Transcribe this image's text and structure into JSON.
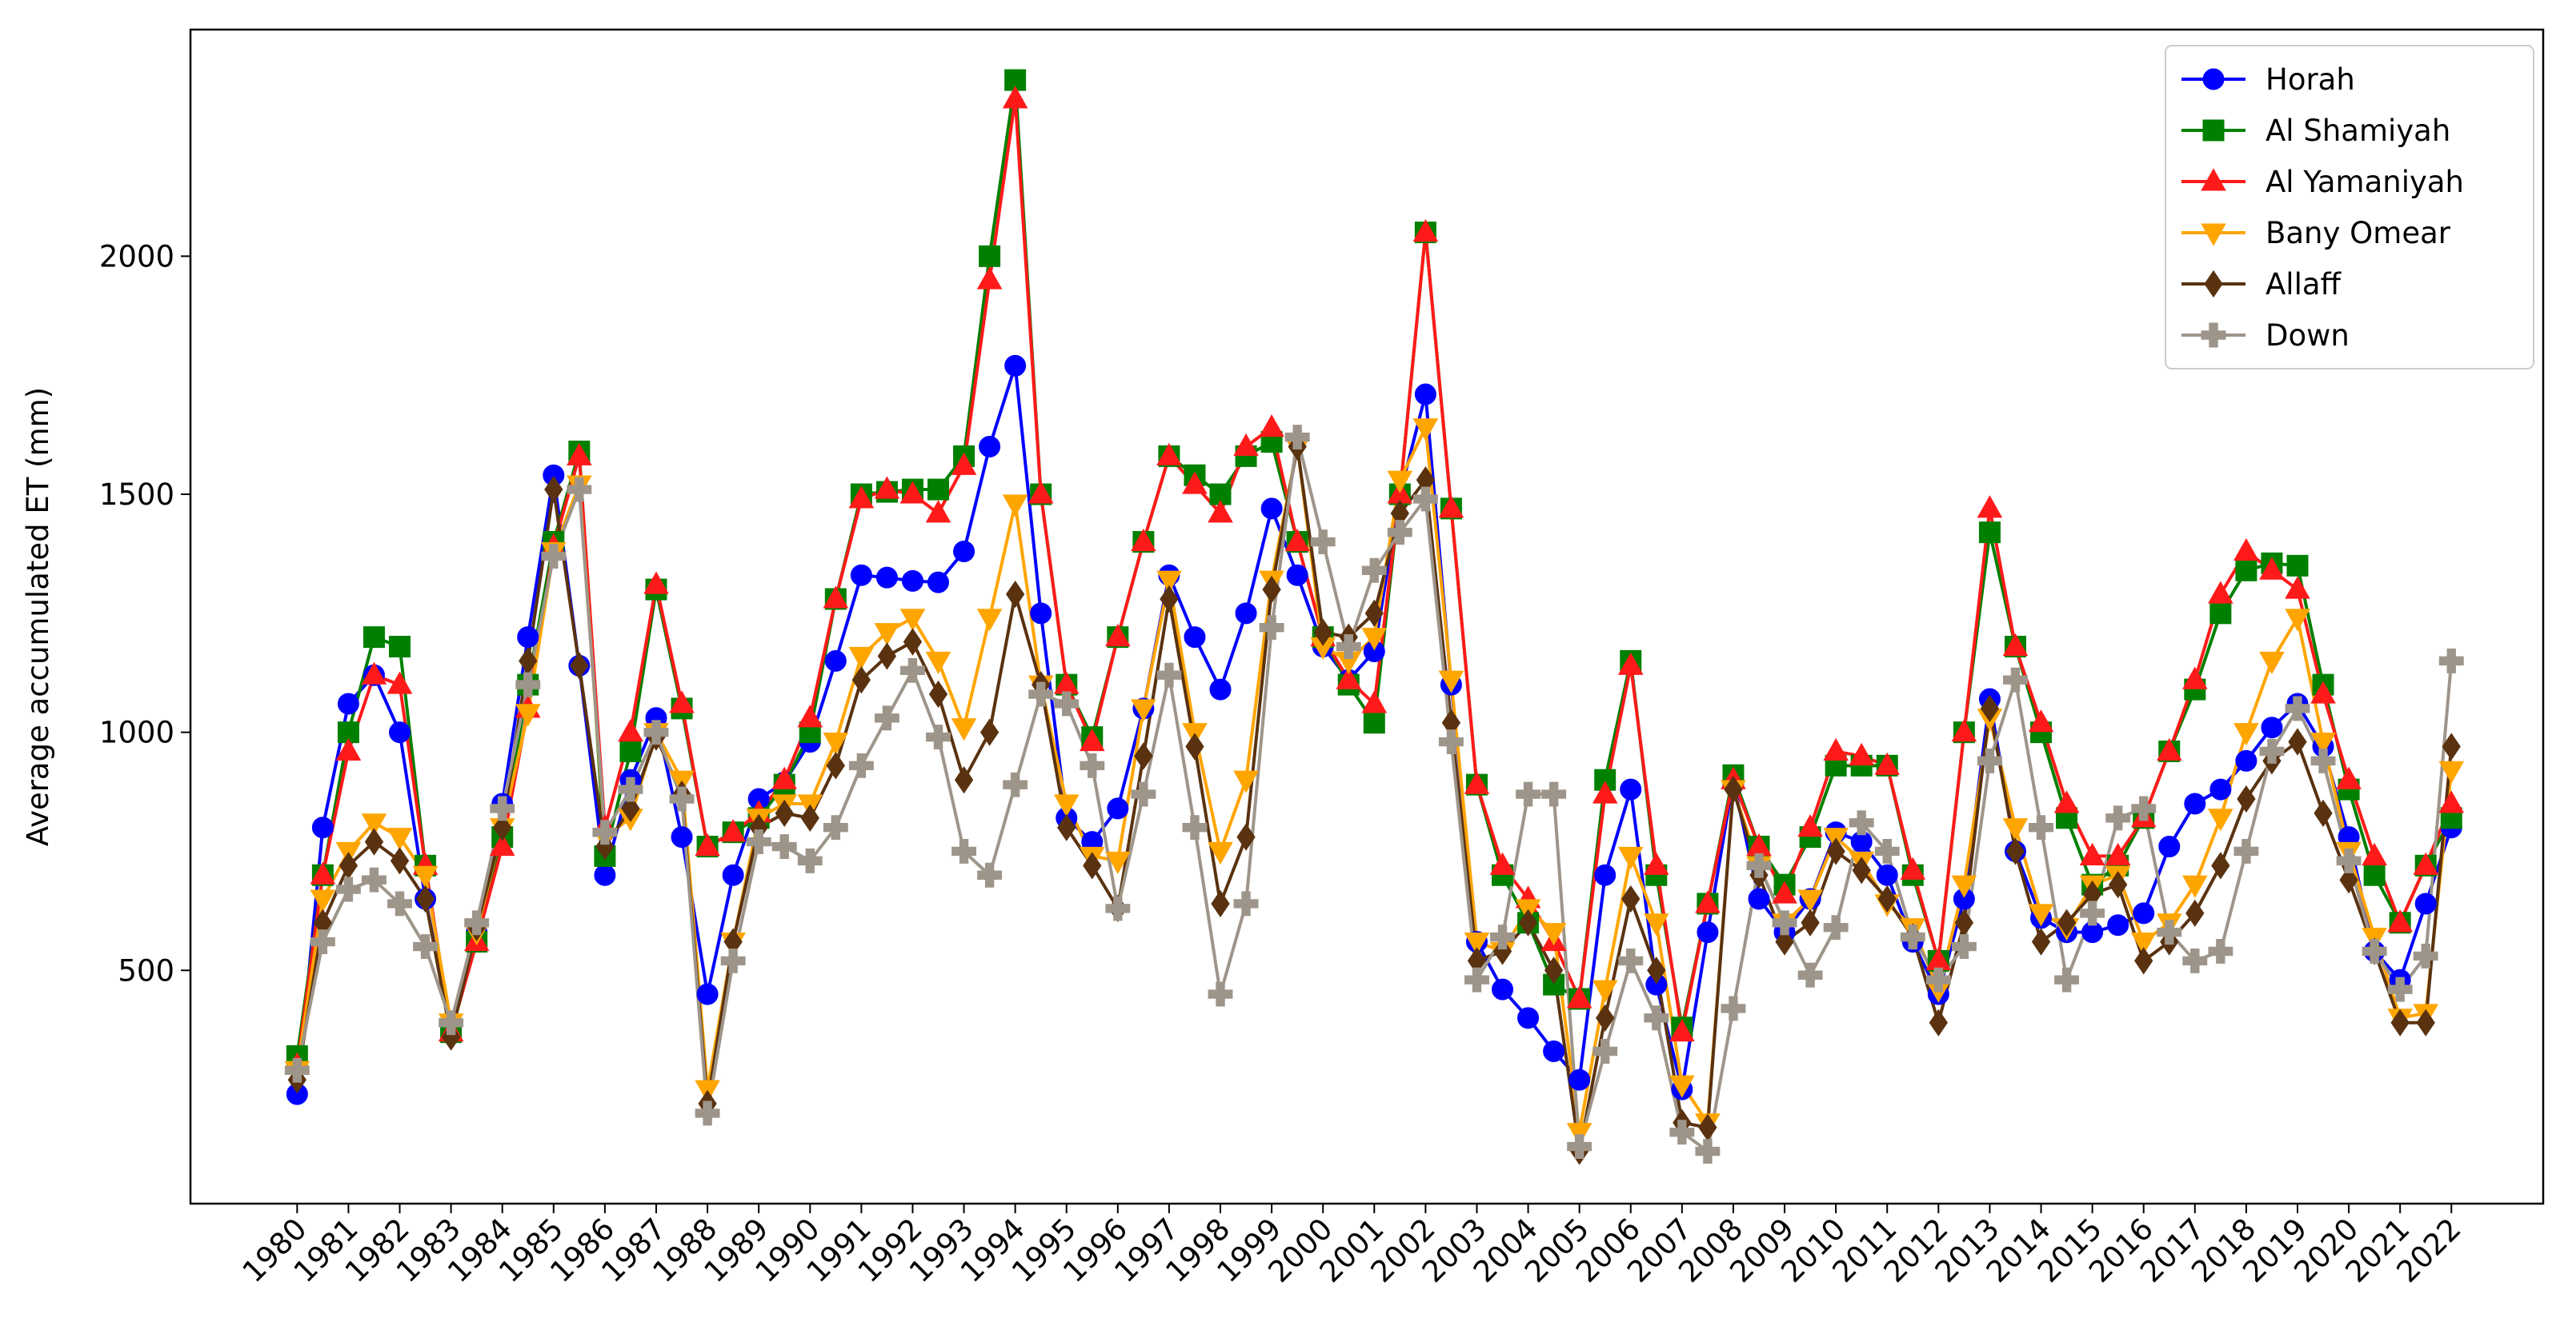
{
  "chart_data": {
    "type": "line",
    "ylabel": "Average accumulated ET (mm)",
    "x": [
      1980,
      1980.5,
      1981,
      1981.5,
      1982,
      1982.5,
      1983,
      1983.5,
      1984,
      1984.5,
      1985,
      1985.5,
      1986,
      1986.5,
      1987,
      1987.5,
      1988,
      1988.5,
      1989,
      1989.5,
      1990,
      1990.5,
      1991,
      1991.5,
      1992,
      1992.5,
      1993,
      1993.5,
      1994,
      1994.5,
      1995,
      1995.5,
      1996,
      1996.5,
      1997,
      1997.5,
      1998,
      1998.5,
      1999,
      1999.5,
      2000,
      2000.5,
      2001,
      2001.5,
      2002,
      2002.5,
      2003,
      2003.5,
      2004,
      2004.5,
      2005,
      2005.5,
      2006,
      2006.5,
      2007,
      2007.5,
      2008,
      2008.5,
      2009,
      2009.5,
      2010,
      2010.5,
      2011,
      2011.5,
      2012,
      2012.5,
      2013,
      2013.5,
      2014,
      2014.5,
      2015,
      2015.5,
      2016,
      2016.5,
      2017,
      2017.5,
      2018,
      2018.5,
      2019,
      2019.5,
      2020,
      2020.5,
      2021,
      2021.5,
      2022
    ],
    "xlim": [
      1977.92,
      2023.79
    ],
    "xticks": [
      1980,
      1981,
      1982,
      1983,
      1984,
      1985,
      1986,
      1987,
      1988,
      1989,
      1990,
      1991,
      1992,
      1993,
      1994,
      1995,
      1996,
      1997,
      1998,
      1999,
      2000,
      2001,
      2002,
      2003,
      2004,
      2005,
      2006,
      2007,
      2008,
      2009,
      2010,
      2011,
      2012,
      2013,
      2014,
      2015,
      2016,
      2017,
      2018,
      2019,
      2020,
      2021,
      2022
    ],
    "ylim": [
      10,
      2476
    ],
    "yticks": [
      500,
      1000,
      1500,
      2000
    ],
    "grid": false,
    "legend": "upper right",
    "series": [
      {
        "name": "Horah",
        "color": "#0000ff",
        "marker": "o",
        "values": [
          240,
          800,
          1060,
          1120,
          1000,
          650,
          380,
          580,
          850,
          1200,
          1540,
          1140,
          700,
          900,
          1030,
          780,
          450,
          700,
          860,
          895,
          980,
          1150,
          1330,
          1325,
          1318,
          1315,
          1380,
          1600,
          1770,
          1250,
          820,
          770,
          840,
          1050,
          1330,
          1200,
          1090,
          1250,
          1470,
          1330,
          1180,
          1110,
          1170,
          1500,
          1710,
          1100,
          560,
          460,
          400,
          330,
          270,
          700,
          880,
          470,
          250,
          580,
          900,
          650,
          580,
          650,
          790,
          770,
          700,
          560,
          450,
          650,
          1070,
          750,
          610,
          580,
          580,
          595,
          620,
          760,
          850,
          880,
          940,
          1010,
          1060,
          970,
          780,
          540,
          480,
          640,
          800
        ]
      },
      {
        "name": "Al Shamiyah",
        "color": "#008000",
        "marker": "s",
        "values": [
          320,
          700,
          1000,
          1200,
          1180,
          720,
          370,
          560,
          780,
          1100,
          1400,
          1590,
          740,
          960,
          1300,
          1050,
          760,
          790,
          820,
          890,
          1000,
          1280,
          1500,
          1505,
          1510,
          1510,
          1580,
          2000,
          2370,
          1500,
          1100,
          990,
          1200,
          1400,
          1580,
          1540,
          1500,
          1580,
          1610,
          1400,
          1200,
          1100,
          1020,
          1500,
          2050,
          1470,
          890,
          700,
          600,
          470,
          440,
          900,
          1150,
          700,
          380,
          640,
          910,
          760,
          680,
          780,
          930,
          930,
          930,
          700,
          520,
          1000,
          1420,
          1180,
          1000,
          820,
          680,
          720,
          820,
          960,
          1090,
          1250,
          1340,
          1355,
          1350,
          1100,
          880,
          700,
          600,
          720,
          820
        ]
      },
      {
        "name": "Al Yamaniyah",
        "color": "#ff1a1a",
        "marker": "^",
        "values": [
          300,
          700,
          960,
          1120,
          1100,
          720,
          370,
          560,
          760,
          1050,
          1390,
          1580,
          800,
          1000,
          1310,
          1060,
          760,
          790,
          830,
          900,
          1030,
          1280,
          1490,
          1510,
          1500,
          1460,
          1560,
          1950,
          2330,
          1500,
          1100,
          980,
          1200,
          1400,
          1580,
          1520,
          1460,
          1600,
          1640,
          1400,
          1200,
          1110,
          1060,
          1500,
          2050,
          1470,
          890,
          720,
          650,
          560,
          440,
          870,
          1140,
          720,
          370,
          640,
          900,
          760,
          660,
          800,
          960,
          950,
          930,
          710,
          520,
          1000,
          1470,
          1180,
          1020,
          850,
          740,
          740,
          820,
          960,
          1110,
          1290,
          1380,
          1340,
          1300,
          1080,
          900,
          740,
          600,
          720,
          850
        ]
      },
      {
        "name": "Bany Omear",
        "color": "#ffa500",
        "marker": "v",
        "values": [
          290,
          650,
          750,
          810,
          780,
          700,
          390,
          580,
          800,
          1040,
          1380,
          1520,
          780,
          820,
          1000,
          900,
          250,
          560,
          820,
          850,
          850,
          980,
          1160,
          1210,
          1240,
          1150,
          1010,
          1240,
          1480,
          1100,
          850,
          740,
          730,
          1050,
          1320,
          1000,
          750,
          900,
          1320,
          1600,
          1180,
          1150,
          1200,
          1530,
          1640,
          1110,
          560,
          540,
          630,
          580,
          160,
          460,
          740,
          600,
          260,
          180,
          880,
          720,
          600,
          650,
          780,
          730,
          640,
          590,
          460,
          680,
          1030,
          800,
          620,
          590,
          680,
          700,
          560,
          600,
          680,
          820,
          1000,
          1150,
          1240,
          980,
          750,
          570,
          400,
          410,
          920
        ]
      },
      {
        "name": "Allaff",
        "color": "#5a3210",
        "marker": "D",
        "values": [
          270,
          600,
          720,
          770,
          730,
          650,
          360,
          590,
          800,
          1150,
          1510,
          1140,
          760,
          840,
          990,
          870,
          220,
          560,
          800,
          830,
          820,
          930,
          1110,
          1160,
          1190,
          1080,
          900,
          1000,
          1290,
          1100,
          800,
          720,
          630,
          950,
          1280,
          970,
          640,
          780,
          1300,
          1600,
          1210,
          1200,
          1250,
          1460,
          1530,
          1020,
          520,
          540,
          600,
          500,
          120,
          400,
          650,
          500,
          180,
          170,
          880,
          700,
          560,
          600,
          750,
          710,
          650,
          570,
          390,
          600,
          1050,
          750,
          560,
          600,
          660,
          680,
          520,
          560,
          620,
          720,
          860,
          940,
          980,
          830,
          690,
          540,
          390,
          390,
          970
        ]
      },
      {
        "name": "Down",
        "color": "#9e958a",
        "marker": "P",
        "values": [
          290,
          560,
          670,
          690,
          640,
          550,
          390,
          600,
          840,
          1100,
          1370,
          1510,
          790,
          880,
          1000,
          860,
          200,
          520,
          770,
          760,
          730,
          800,
          930,
          1030,
          1130,
          990,
          750,
          700,
          890,
          1080,
          1060,
          930,
          630,
          870,
          1120,
          800,
          450,
          640,
          1220,
          1620,
          1400,
          1180,
          1340,
          1420,
          1490,
          980,
          480,
          570,
          870,
          870,
          130,
          330,
          520,
          400,
          160,
          120,
          420,
          720,
          600,
          490,
          590,
          810,
          750,
          570,
          480,
          550,
          940,
          1110,
          800,
          480,
          620,
          820,
          840,
          580,
          520,
          540,
          750,
          960,
          1050,
          940,
          730,
          540,
          460,
          530,
          1150
        ]
      }
    ]
  }
}
